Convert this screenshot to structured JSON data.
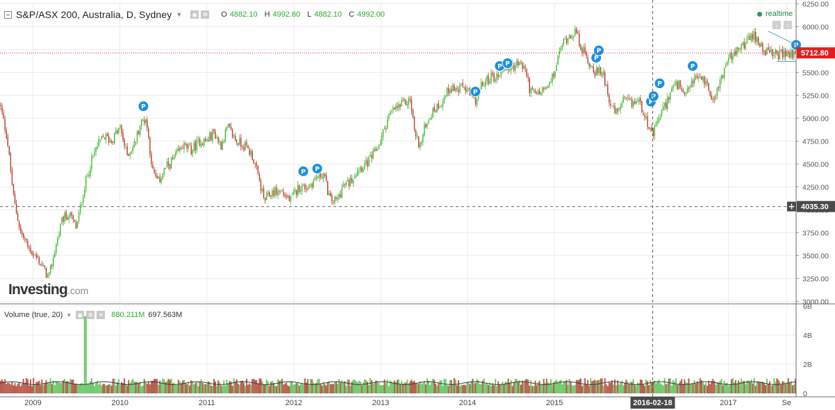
{
  "header": {
    "title": "S&P/ASX 200, Australia, D, Sydney",
    "ohlc": [
      {
        "k": "O",
        "v": "4882.10"
      },
      {
        "k": "H",
        "v": "4992.60"
      },
      {
        "k": "L",
        "v": "4882.10"
      },
      {
        "k": "C",
        "v": "4992.00"
      }
    ]
  },
  "realtime_label": "realtime",
  "logo": {
    "bold": "Investing",
    "suffix": ".com"
  },
  "volume_header": {
    "label": "Volume (true, 20)",
    "value1": "880.211M",
    "value2": "697.563M"
  },
  "colors": {
    "up": "#3cb731",
    "down": "#b5392b",
    "price_line": "#e02020",
    "marker": "#1a8fe3",
    "crosshair": "#5a5a5a"
  },
  "chart_data": {
    "type": "candlestick",
    "price_axis": {
      "range": [
        2980,
        6260
      ],
      "ticks": [
        "6250.00",
        "6000.00",
        "5750.00",
        "5500.00",
        "5250.00",
        "5000.00",
        "4750.00",
        "4500.00",
        "4250.00",
        "4000.00",
        "3750.00",
        "3500.00",
        "3250.00",
        "3000.00"
      ]
    },
    "volume_axis": {
      "range": [
        0,
        6000000000
      ],
      "ticks": [
        "6B",
        "4B",
        "2B",
        "0"
      ],
      "tick_values": [
        6000000000,
        4000000000,
        2000000000,
        0
      ]
    },
    "x_axis": {
      "range": [
        2008.62,
        2017.78
      ],
      "ticks": [
        "2009",
        "2010",
        "2011",
        "2012",
        "2013",
        "2014",
        "2015",
        "2016-02-18",
        "2017",
        "Se"
      ],
      "tick_years": [
        2009.0,
        2010.0,
        2011.0,
        2012.0,
        2013.0,
        2014.0,
        2015.0,
        2016.13,
        2017.0,
        2017.67
      ]
    },
    "last_price": {
      "value": 5712.8,
      "label": "5712.80"
    },
    "crosshair": {
      "date": "2016-02-18",
      "date_year": 2016.13,
      "value": 4035.3,
      "label": "4035.30"
    },
    "close_series": [
      [
        2008.62,
        5150
      ],
      [
        2008.7,
        4800
      ],
      [
        2008.78,
        4100
      ],
      [
        2008.86,
        3750
      ],
      [
        2008.94,
        3600
      ],
      [
        2009.02,
        3500
      ],
      [
        2009.1,
        3400
      ],
      [
        2009.18,
        3250
      ],
      [
        2009.26,
        3600
      ],
      [
        2009.34,
        3900
      ],
      [
        2009.42,
        3950
      ],
      [
        2009.5,
        3800
      ],
      [
        2009.58,
        4200
      ],
      [
        2009.66,
        4500
      ],
      [
        2009.74,
        4700
      ],
      [
        2009.82,
        4800
      ],
      [
        2009.9,
        4750
      ],
      [
        2010.0,
        4900
      ],
      [
        2010.08,
        4600
      ],
      [
        2010.16,
        4700
      ],
      [
        2010.24,
        4950
      ],
      [
        2010.3,
        5000
      ],
      [
        2010.38,
        4400
      ],
      [
        2010.44,
        4300
      ],
      [
        2010.52,
        4450
      ],
      [
        2010.62,
        4550
      ],
      [
        2010.72,
        4700
      ],
      [
        2010.82,
        4650
      ],
      [
        2010.92,
        4750
      ],
      [
        2011.0,
        4750
      ],
      [
        2011.08,
        4850
      ],
      [
        2011.16,
        4700
      ],
      [
        2011.24,
        4900
      ],
      [
        2011.34,
        4750
      ],
      [
        2011.44,
        4700
      ],
      [
        2011.52,
        4600
      ],
      [
        2011.58,
        4400
      ],
      [
        2011.66,
        4100
      ],
      [
        2011.76,
        4200
      ],
      [
        2011.86,
        4200
      ],
      [
        2011.96,
        4100
      ],
      [
        2012.06,
        4250
      ],
      [
        2012.16,
        4250
      ],
      [
        2012.26,
        4350
      ],
      [
        2012.34,
        4400
      ],
      [
        2012.42,
        4100
      ],
      [
        2012.5,
        4100
      ],
      [
        2012.56,
        4250
      ],
      [
        2012.64,
        4300
      ],
      [
        2012.74,
        4450
      ],
      [
        2012.84,
        4500
      ],
      [
        2012.92,
        4600
      ],
      [
        2013.0,
        4750
      ],
      [
        2013.08,
        5000
      ],
      [
        2013.16,
        5100
      ],
      [
        2013.26,
        5150
      ],
      [
        2013.34,
        5200
      ],
      [
        2013.4,
        4800
      ],
      [
        2013.46,
        4700
      ],
      [
        2013.52,
        4950
      ],
      [
        2013.62,
        5100
      ],
      [
        2013.72,
        5200
      ],
      [
        2013.8,
        5350
      ],
      [
        2013.88,
        5300
      ],
      [
        2013.96,
        5350
      ],
      [
        2014.06,
        5200
      ],
      [
        2014.1,
        5200
      ],
      [
        2014.16,
        5350
      ],
      [
        2014.26,
        5450
      ],
      [
        2014.34,
        5450
      ],
      [
        2014.42,
        5550
      ],
      [
        2014.5,
        5550
      ],
      [
        2014.58,
        5600
      ],
      [
        2014.66,
        5550
      ],
      [
        2014.72,
        5300
      ],
      [
        2014.78,
        5250
      ],
      [
        2014.86,
        5300
      ],
      [
        2014.94,
        5350
      ],
      [
        2015.0,
        5500
      ],
      [
        2015.08,
        5800
      ],
      [
        2015.16,
        5900
      ],
      [
        2015.24,
        5950
      ],
      [
        2015.32,
        5750
      ],
      [
        2015.4,
        5600
      ],
      [
        2015.48,
        5500
      ],
      [
        2015.56,
        5500
      ],
      [
        2015.62,
        5250
      ],
      [
        2015.66,
        5100
      ],
      [
        2015.72,
        5050
      ],
      [
        2015.8,
        5200
      ],
      [
        2015.88,
        5150
      ],
      [
        2015.96,
        5200
      ],
      [
        2016.04,
        5050
      ],
      [
        2016.1,
        4850
      ],
      [
        2016.13,
        4800
      ],
      [
        2016.2,
        5000
      ],
      [
        2016.28,
        5150
      ],
      [
        2016.36,
        5350
      ],
      [
        2016.44,
        5350
      ],
      [
        2016.5,
        5200
      ],
      [
        2016.58,
        5400
      ],
      [
        2016.66,
        5450
      ],
      [
        2016.74,
        5400
      ],
      [
        2016.8,
        5250
      ],
      [
        2016.86,
        5250
      ],
      [
        2016.92,
        5450
      ],
      [
        2017.0,
        5650
      ],
      [
        2017.08,
        5700
      ],
      [
        2017.16,
        5800
      ],
      [
        2017.24,
        5850
      ],
      [
        2017.3,
        5900
      ],
      [
        2017.38,
        5800
      ],
      [
        2017.46,
        5700
      ],
      [
        2017.54,
        5700
      ],
      [
        2017.62,
        5700
      ],
      [
        2017.7,
        5700
      ],
      [
        2017.78,
        5712.8
      ]
    ],
    "markers": [
      {
        "label": "P",
        "x": 2010.27,
        "y": 5130
      },
      {
        "label": "P",
        "x": 2012.11,
        "y": 4420
      },
      {
        "label": "P",
        "x": 2012.27,
        "y": 4450
      },
      {
        "label": "P",
        "x": 2014.09,
        "y": 5290
      },
      {
        "label": "P",
        "x": 2014.37,
        "y": 5570
      },
      {
        "label": "P",
        "x": 2014.46,
        "y": 5600
      },
      {
        "label": "P",
        "x": 2015.48,
        "y": 5660
      },
      {
        "label": "P",
        "x": 2015.51,
        "y": 5740
      },
      {
        "label": "P",
        "x": 2016.11,
        "y": 5180
      },
      {
        "label": "P",
        "x": 2016.14,
        "y": 5240
      },
      {
        "label": "P",
        "x": 2016.21,
        "y": 5380
      },
      {
        "label": "P",
        "x": 2016.59,
        "y": 5570
      },
      {
        "label": "P",
        "x": 2017.78,
        "y": 5800
      }
    ],
    "volume": {
      "typical": 700000000,
      "spike": {
        "x": 2009.6,
        "value": 5300000000
      }
    },
    "grid": true
  }
}
